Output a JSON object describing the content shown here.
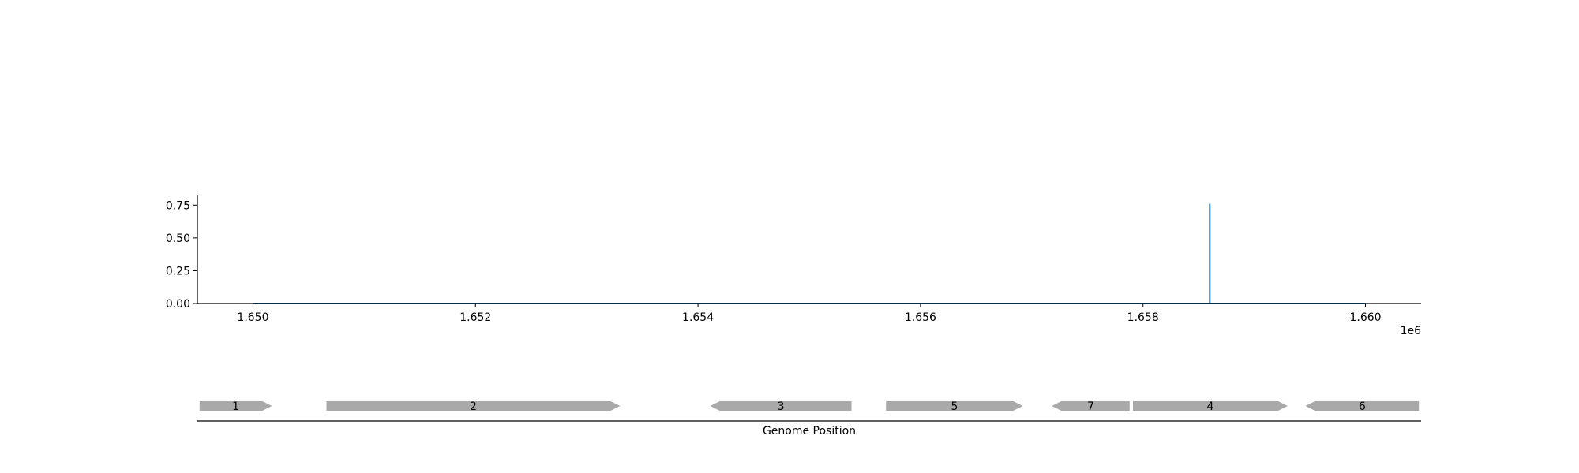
{
  "chart_data": [
    {
      "type": "line",
      "title": "",
      "xlabel": "",
      "ylabel": "",
      "x_offset_label": "1e6",
      "xlim": [
        1649500,
        1660500
      ],
      "ylim": [
        0,
        0.83
      ],
      "x_ticks": [
        1650000,
        1652000,
        1654000,
        1656000,
        1658000,
        1660000
      ],
      "x_tick_labels": [
        "1.650",
        "1.652",
        "1.654",
        "1.656",
        "1.658",
        "1.660"
      ],
      "y_ticks": [
        0,
        0.25,
        0.5,
        0.75
      ],
      "y_tick_labels": [
        "0.00",
        "0.25",
        "0.50",
        "0.75"
      ],
      "grid": false,
      "color": "#1f77b4",
      "series": [
        {
          "x": [
            1650000,
            1658600,
            1658600,
            1658600,
            1660000
          ],
          "y": [
            0,
            0,
            0.76,
            0,
            0
          ]
        }
      ]
    },
    {
      "type": "gene-map",
      "xlabel": "Genome Position",
      "xlim": [
        1649500,
        1660500
      ],
      "color": "#a9a9a9",
      "genes": [
        {
          "label": "1",
          "start": 1649520,
          "end": 1650170,
          "strand": "+"
        },
        {
          "label": "2",
          "start": 1650660,
          "end": 1653300,
          "strand": "+"
        },
        {
          "label": "3",
          "start": 1654110,
          "end": 1655380,
          "strand": "-"
        },
        {
          "label": "5",
          "start": 1655690,
          "end": 1656920,
          "strand": "+"
        },
        {
          "label": "7",
          "start": 1657180,
          "end": 1657880,
          "strand": "-"
        },
        {
          "label": "4",
          "start": 1657910,
          "end": 1659300,
          "strand": "+"
        },
        {
          "label": "6",
          "start": 1659460,
          "end": 1660480,
          "strand": "-"
        }
      ]
    }
  ]
}
